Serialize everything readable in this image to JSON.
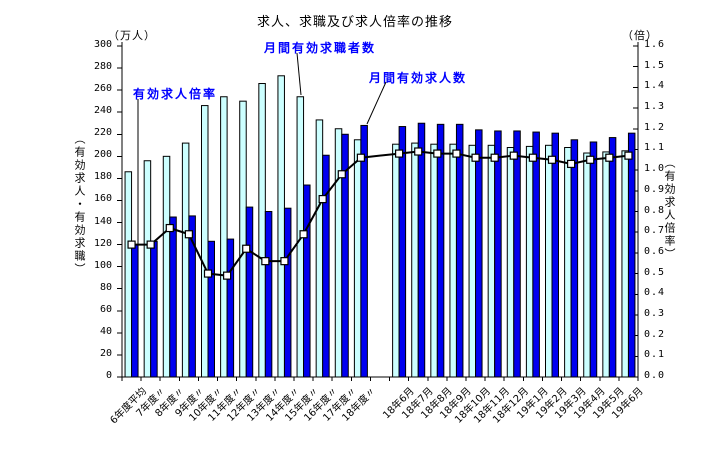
{
  "title": "求人、求職及び求人倍率の推移",
  "axes": {
    "left_unit": "（万人）",
    "right_unit": "（倍）",
    "left_axis_label": "（有効求人・有効求職）",
    "right_axis_label": "（有効求人倍率）",
    "left_ticks": [
      "0",
      "20",
      "40",
      "60",
      "80",
      "100",
      "120",
      "140",
      "160",
      "180",
      "200",
      "220",
      "240",
      "260",
      "280",
      "300"
    ],
    "right_ticks": [
      "0.0",
      "0.1",
      "0.2",
      "0.3",
      "0.4",
      "0.5",
      "0.6",
      "0.7",
      "0.8",
      "0.9",
      "1.0",
      "1.1",
      "1.2",
      "1.3",
      "1.4",
      "1.5",
      "1.6"
    ]
  },
  "annotations": {
    "ratio_label": "有効求人倍率",
    "seekers_label": "月間有効求職者数",
    "openings_label": "月間有効求人数"
  },
  "colors": {
    "seekers_bar": "#CCFFFF",
    "openings_bar": "#0000F0",
    "bar_border": "#000000",
    "line": "#000000",
    "marker_fill": "#FFFFFF",
    "annotation_text": "#0000FF",
    "axis": "#000000"
  },
  "chart_data": {
    "type": "bar+line combo",
    "title": "求人、求職及び求人倍率の推移",
    "categories": [
      "6年度平均",
      "7年度〃",
      "8年度〃",
      "9年度〃",
      "10年度〃",
      "11年度〃",
      "12年度〃",
      "13年度〃",
      "14年度〃",
      "15年度〃",
      "16年度〃",
      "17年度〃",
      "18年度〃",
      "18年6月",
      "18年7月",
      "18年8月",
      "18年9月",
      "18年10月",
      "18年11月",
      "18年12月",
      "19年1月",
      "19年2月",
      "19年3月",
      "19年4月",
      "19年5月",
      "19年6月"
    ],
    "gap_after_index": 12,
    "series": [
      {
        "name": "月間有効求職者数",
        "type": "bar",
        "axis": "left",
        "values": [
          186,
          196,
          200,
          212,
          246,
          254,
          250,
          266,
          273,
          254,
          233,
          225,
          215,
          211,
          212,
          211,
          211,
          210,
          210,
          208,
          209,
          210,
          208,
          203,
          204,
          205
        ]
      },
      {
        "name": "月間有効求人数",
        "type": "bar",
        "axis": "left",
        "values": [
          120,
          123,
          145,
          146,
          123,
          125,
          154,
          150,
          153,
          174,
          201,
          220,
          228,
          227,
          230,
          229,
          229,
          224,
          223,
          223,
          222,
          221,
          215,
          213,
          217,
          221
        ]
      },
      {
        "name": "有効求人倍率",
        "type": "line",
        "axis": "right",
        "values": [
          0.64,
          0.64,
          0.72,
          0.69,
          0.5,
          0.49,
          0.62,
          0.56,
          0.56,
          0.69,
          0.86,
          0.98,
          1.06,
          1.08,
          1.09,
          1.08,
          1.08,
          1.06,
          1.06,
          1.07,
          1.06,
          1.05,
          1.03,
          1.05,
          1.06,
          1.07
        ]
      }
    ],
    "left_axis": {
      "unit": "万人",
      "min": 0,
      "max": 300,
      "step": 20
    },
    "right_axis": {
      "unit": "倍",
      "min": 0.0,
      "max": 1.6,
      "step": 0.1
    },
    "grid": false,
    "legend": "annotated with pointer lines"
  }
}
